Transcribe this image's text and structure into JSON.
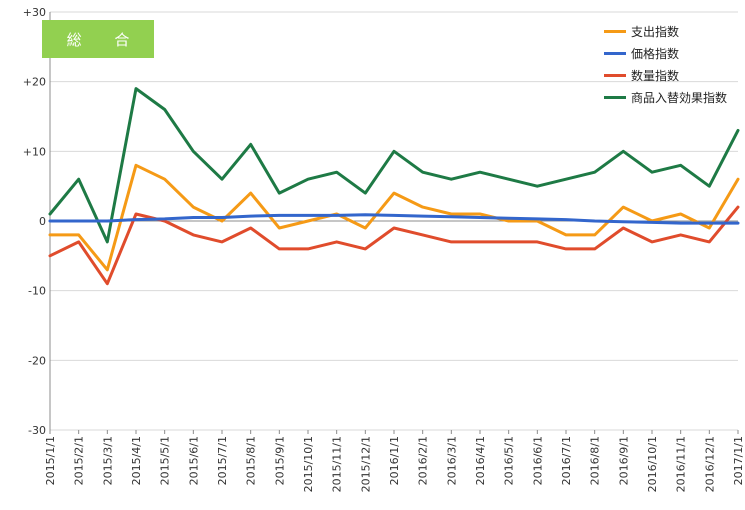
{
  "chart_data": {
    "type": "line",
    "title": "総 合",
    "ylim": [
      -30,
      30
    ],
    "y_ticks": [
      "+30",
      "+20",
      "+10",
      "0",
      "-10",
      "-20",
      "-30"
    ],
    "y_tick_values": [
      30,
      20,
      10,
      0,
      -10,
      -20,
      -30
    ],
    "x": [
      "2015/1/1",
      "2015/2/1",
      "2015/3/1",
      "2015/4/1",
      "2015/5/1",
      "2015/6/1",
      "2015/7/1",
      "2015/8/1",
      "2015/9/1",
      "2015/10/1",
      "2015/11/1",
      "2015/12/1",
      "2016/1/1",
      "2016/2/1",
      "2016/3/1",
      "2016/4/1",
      "2016/5/1",
      "2016/6/1",
      "2016/7/1",
      "2016/8/1",
      "2016/9/1",
      "2016/10/1",
      "2016/11/1",
      "2016/12/1",
      "2017/1/1"
    ],
    "grid": true,
    "legend_position": "top-right",
    "series": [
      {
        "name": "支出指数",
        "color": "#f59a16",
        "values": [
          -2,
          -2,
          -7,
          8,
          6,
          2,
          0,
          4,
          -1,
          0,
          1,
          -1,
          4,
          2,
          1,
          1,
          0,
          0,
          -2,
          -2,
          2,
          0,
          1,
          -1,
          6
        ]
      },
      {
        "name": "価格指数",
        "color": "#3366cc",
        "values": [
          0,
          0,
          0,
          0.2,
          0.3,
          0.5,
          0.5,
          0.7,
          0.8,
          0.8,
          0.8,
          0.9,
          0.8,
          0.7,
          0.6,
          0.5,
          0.4,
          0.3,
          0.2,
          0,
          -0.1,
          -0.2,
          -0.3,
          -0.3,
          -0.3
        ]
      },
      {
        "name": "数量指数",
        "color": "#e04c2c",
        "values": [
          -5,
          -3,
          -9,
          1,
          0,
          -2,
          -3,
          -1,
          -4,
          -4,
          -3,
          -4,
          -1,
          -2,
          -3,
          -3,
          -3,
          -3,
          -4,
          -4,
          -1,
          -3,
          -2,
          -3,
          2
        ]
      },
      {
        "name": "商品入替効果指数",
        "color": "#1e7a45",
        "values": [
          1,
          6,
          -3,
          19,
          16,
          10,
          6,
          11,
          4,
          6,
          7,
          4,
          10,
          7,
          6,
          7,
          6,
          5,
          6,
          7,
          10,
          7,
          8,
          5,
          13
        ]
      }
    ]
  }
}
